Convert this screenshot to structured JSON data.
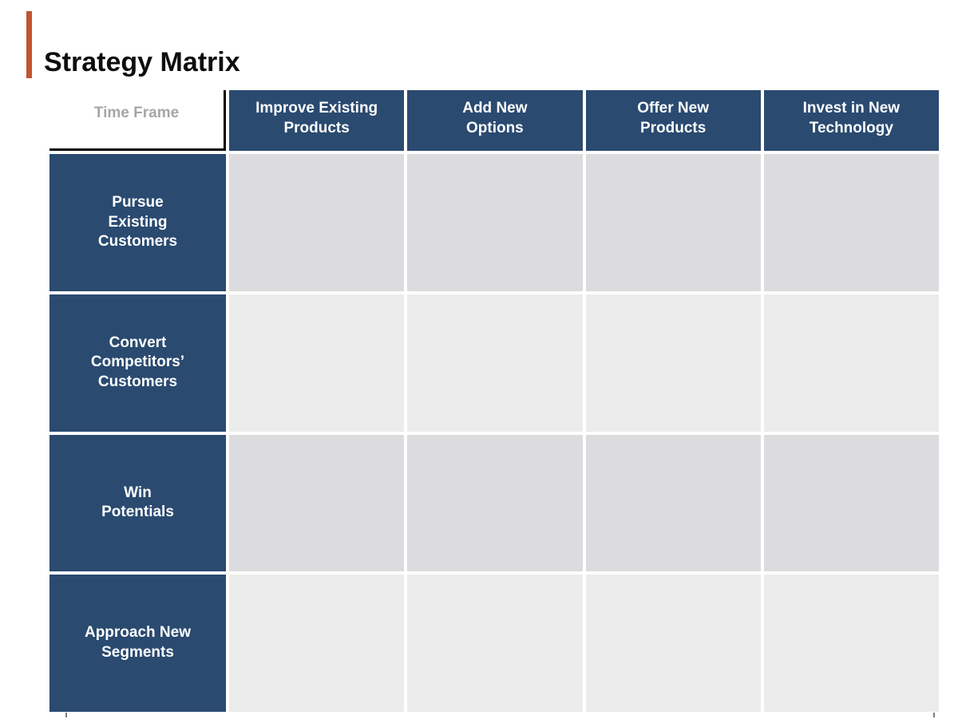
{
  "title": "Strategy Matrix",
  "colors": {
    "accent": "#c1532f",
    "header_blue": "#2a4a70",
    "body_cell_dark": "#dcdcde",
    "body_cell_light": "#ececed",
    "corner_text": "#a6a6a6",
    "axis_border": "#000000"
  },
  "matrix": {
    "corner_label": "Time Frame",
    "column_headers": [
      "Improve Existing\nProducts",
      "Add New\nOptions",
      "Offer New\nProducts",
      "Invest in New\nTechnology"
    ],
    "row_headers": [
      "Pursue\nExisting\nCustomers",
      "Convert\nCompetitors’\nCustomers",
      "Win\nPotentials",
      "Approach New\nSegments"
    ],
    "cells": [
      [
        "",
        "",
        "",
        ""
      ],
      [
        "",
        "",
        "",
        ""
      ],
      [
        "",
        "",
        "",
        ""
      ],
      [
        "",
        "",
        "",
        ""
      ]
    ]
  }
}
